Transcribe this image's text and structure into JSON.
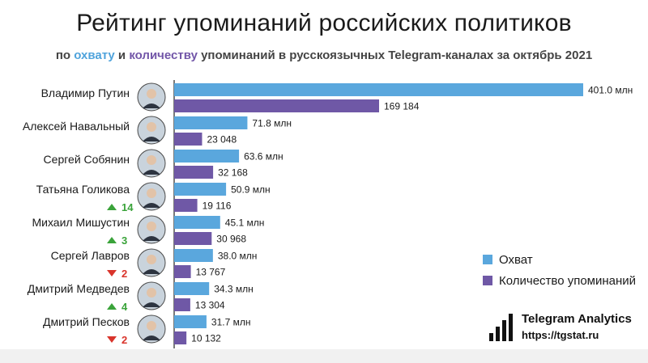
{
  "header": {
    "title": "Рейтинг упоминаний российских политиков",
    "subtitle_prefix": "по ",
    "subtitle_reach": "охвату",
    "subtitle_mid": " и ",
    "subtitle_count": "количеству",
    "subtitle_suffix": " упоминаний в русскоязычных Telegram-каналах за октябрь 2021"
  },
  "colors": {
    "reach": "#5aa7dd",
    "count": "#6f58a6",
    "up": "#3aa33a",
    "down": "#d9342b"
  },
  "chart_data": {
    "type": "bar",
    "orientation": "horizontal",
    "categories": [
      "Владимир Путин",
      "Алексей Навальный",
      "Сергей Собянин",
      "Татьяна Голикова",
      "Михаил Мишустин",
      "Сергей Лавров",
      "Дмитрий Медведев",
      "Дмитрий Песков"
    ],
    "series": [
      {
        "name": "Охват",
        "values": [
          401.0,
          71.8,
          63.6,
          50.9,
          45.1,
          38.0,
          34.3,
          31.7
        ],
        "labels": [
          "401.0 млн",
          "71.8 млн",
          "63.6 млн",
          "50.9 млн",
          "45.1 млн",
          "38.0 млн",
          "34.3 млн",
          "31.7 млн"
        ]
      },
      {
        "name": "Количество упоминаний",
        "values": [
          169184,
          23048,
          32168,
          19116,
          30968,
          13767,
          13304,
          10132
        ],
        "labels": [
          "169 184",
          "23 048",
          "32 168",
          "19 116",
          "30 968",
          "13 767",
          "13 304",
          "10 132"
        ]
      }
    ],
    "rank_changes": [
      null,
      null,
      null,
      {
        "dir": "up",
        "value": "14"
      },
      {
        "dir": "up",
        "value": "3"
      },
      {
        "dir": "down",
        "value": "2"
      },
      {
        "dir": "up",
        "value": "4"
      },
      {
        "dir": "down",
        "value": "2"
      }
    ],
    "legend_position": "right",
    "grid": false
  },
  "legend": {
    "reach": "Охват",
    "count": "Количество упоминаний"
  },
  "brand": {
    "name": "Telegram Analytics",
    "url": "https://tgstat.ru"
  }
}
